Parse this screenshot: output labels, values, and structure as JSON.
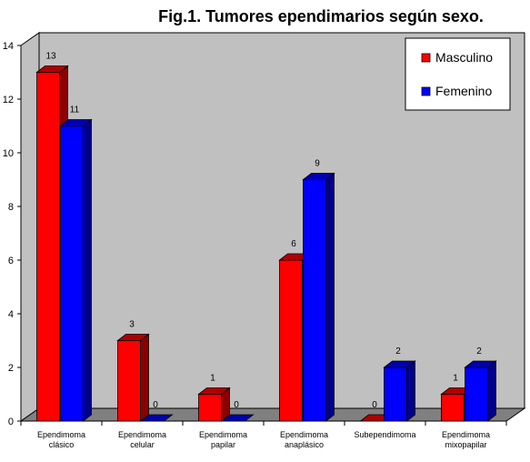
{
  "chart_data": {
    "type": "bar",
    "title": "Fig.1. Tumores ependimarios según sexo.",
    "xlabel": "",
    "ylabel": "",
    "ylim": [
      0,
      14
    ],
    "yticks": [
      0,
      2,
      4,
      6,
      8,
      10,
      12,
      14
    ],
    "grid": false,
    "legend_position": "top-right",
    "categories": [
      [
        "Ependimoma",
        "clásico"
      ],
      [
        "Ependimoma",
        "celular"
      ],
      [
        "Ependimoma",
        "papilar"
      ],
      [
        "Ependimoma",
        "anaplásico"
      ],
      [
        "Subependimoma"
      ],
      [
        "Ependimoma",
        "mixopapilar"
      ]
    ],
    "series": [
      {
        "name": "Masculino",
        "color": "#ff0000",
        "side_color": "#8b0000",
        "top_color": "#b00000",
        "values": [
          13,
          3,
          1,
          6,
          0,
          1
        ]
      },
      {
        "name": "Femenino",
        "color": "#0000ff",
        "side_color": "#00008b",
        "top_color": "#0000b0",
        "values": [
          11,
          0,
          0,
          9,
          2,
          2
        ]
      }
    ]
  }
}
